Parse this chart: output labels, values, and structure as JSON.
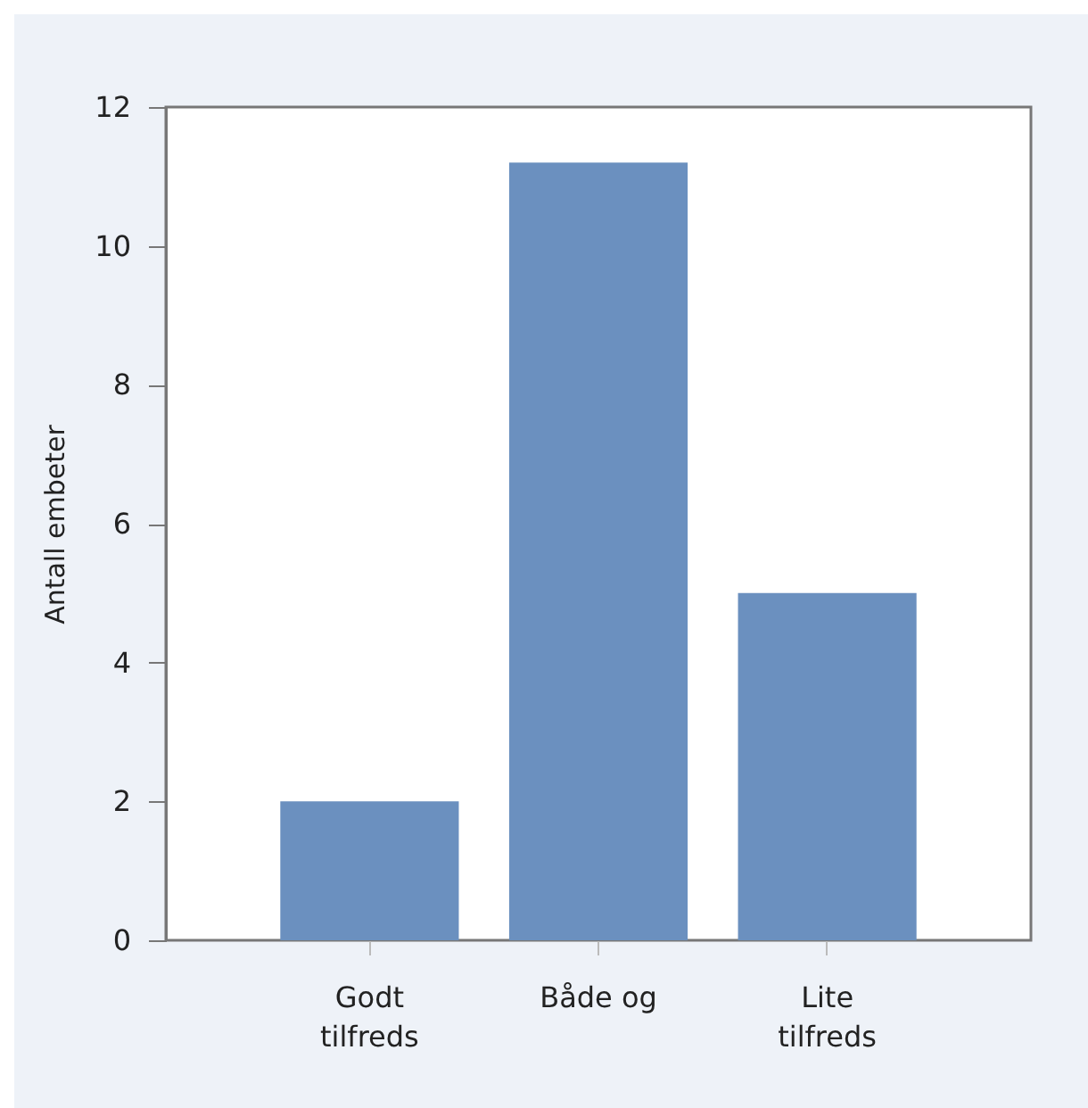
{
  "chart_data": {
    "type": "bar",
    "ylabel": "Antall embeter",
    "categories": [
      "Godt tilfreds",
      "Både og",
      "Lite tilfreds"
    ],
    "values": [
      2,
      11.2,
      5
    ],
    "color": "#6b90bf",
    "ylim": [
      0,
      12
    ],
    "yticks": [
      0,
      2,
      4,
      6,
      8,
      10,
      12
    ],
    "grid": false
  }
}
